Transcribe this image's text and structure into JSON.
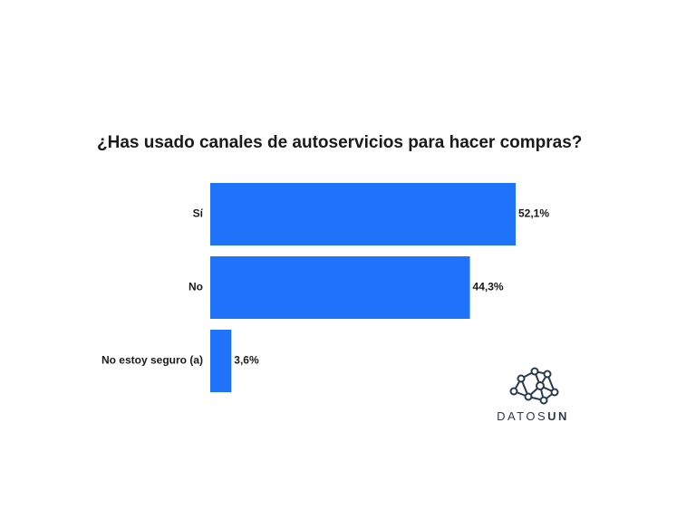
{
  "chart_data": {
    "type": "barh",
    "title": "¿Has usado canales de autoservicios para hacer compras?",
    "categories": [
      "Sí",
      "No",
      "No estoy seguro (a)"
    ],
    "values": [
      52.1,
      44.3,
      3.6
    ],
    "value_labels": [
      "52,1%",
      "44,3%",
      "3,6%"
    ],
    "color": "#1e73fa"
  },
  "logo": {
    "text": "DATOS",
    "bold": "UN"
  }
}
